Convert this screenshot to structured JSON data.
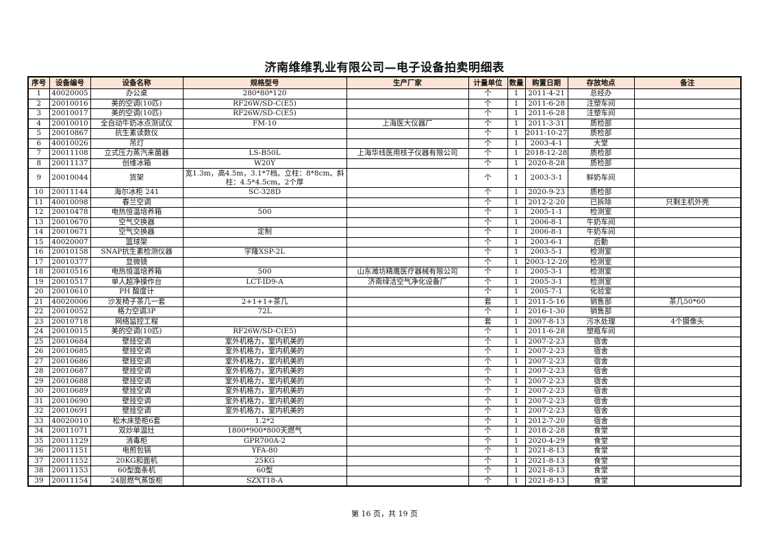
{
  "title": "济南维维乳业有限公司—电子设备拍卖明细表",
  "columns": [
    "序号",
    "设备编号",
    "设备名称",
    "规格型号",
    "生产厂家",
    "计量单位",
    "数量",
    "购置日期",
    "存放地点",
    "备注"
  ],
  "rows": [
    [
      "1",
      "40020005",
      "办公桌",
      "280*80*120",
      "",
      "个",
      "1",
      "2011-4-21",
      "总经办",
      ""
    ],
    [
      "2",
      "20010016",
      "美的空调(10匹)",
      "RF26W/SD-C(E5)",
      "",
      "个",
      "1",
      "2011-6-28",
      "注塑车间",
      ""
    ],
    [
      "3",
      "20010017",
      "美的空调(10匹)",
      "RF26W/SD-C(E5)",
      "",
      "个",
      "1",
      "2011-6-28",
      "注塑车间",
      ""
    ],
    [
      "4",
      "20010010",
      "全自动牛奶冰点测试仪",
      "FM-10",
      "上海医大仪器厂",
      "个",
      "1",
      "2011-3-31",
      "质检部",
      ""
    ],
    [
      "5",
      "20010867",
      "抗生素读数仪",
      "",
      "",
      "个",
      "1",
      "2011-10-27",
      "质检部",
      ""
    ],
    [
      "6",
      "40010026",
      "吊灯",
      "",
      "",
      "个",
      "1",
      "2003-4-1",
      "大堂",
      ""
    ],
    [
      "7",
      "20011108",
      "立式压力蒸汽来菌器",
      "LS-B50L",
      "上海华线医用核子仪器有限公司",
      "个",
      "1",
      "2018-12-28",
      "质检部",
      ""
    ],
    [
      "8",
      "20011137",
      "创维冰箱",
      "W20Y",
      "",
      "个",
      "1",
      "2020-8-28",
      "质检部",
      ""
    ],
    [
      "9",
      "20010044",
      "货架",
      "宽1.3m，高4.5m，3.1*7档。立柱：8*8cm。斜柱：4.5*4.5cm。2个厚",
      "",
      "个",
      "1",
      "2003-3-1",
      "鲜奶车间",
      ""
    ],
    [
      "10",
      "20011144",
      "海尔冰柜 241",
      "SC-328D",
      "",
      "个",
      "1",
      "2020-9-23",
      "质检部",
      ""
    ],
    [
      "11",
      "40010098",
      "春兰空调",
      "",
      "",
      "个",
      "1",
      "2012-2-20",
      "已拆除",
      "只剩主机外壳"
    ],
    [
      "12",
      "20010478",
      "电热恒温培养箱",
      "500",
      "",
      "个",
      "1",
      "2005-1-1",
      "检测室",
      ""
    ],
    [
      "13",
      "20010670",
      "空气交换器",
      "",
      "",
      "个",
      "1",
      "2006-8-1",
      "牛奶车间",
      ""
    ],
    [
      "14",
      "20010671",
      "空气交换器",
      "定制",
      "",
      "个",
      "1",
      "2006-8-1",
      "牛奶车间",
      ""
    ],
    [
      "15",
      "40020007",
      "篮球架",
      "",
      "",
      "个",
      "1",
      "2003-6-1",
      "后勤",
      ""
    ],
    [
      "16",
      "20010158",
      "SNAP抗生素检测仪器",
      "宇隆XSP-2L",
      "",
      "个",
      "1",
      "2003-5-1",
      "检测室",
      ""
    ],
    [
      "17",
      "20010377",
      "显微镜",
      "",
      "",
      "个",
      "1",
      "2003-12-20",
      "检测室",
      ""
    ],
    [
      "18",
      "20010516",
      "电热恒温培养箱",
      "500",
      "山东潍坊精鹰医疗器械有限公司",
      "个",
      "1",
      "2005-3-1",
      "检测室",
      ""
    ],
    [
      "19",
      "20010517",
      "单人超净操作台",
      "LCT-ID9-A",
      "济南绿洁空气净化设备厂",
      "个",
      "1",
      "2005-3-1",
      "检测室",
      ""
    ],
    [
      "20",
      "20010610",
      "PH 酸度计",
      "",
      "",
      "个",
      "1",
      "2005-7-1",
      "化验室",
      ""
    ],
    [
      "21",
      "40020006",
      "沙发椅子茶几一套",
      "2+1+1+茶几",
      "",
      "套",
      "1",
      "2011-5-16",
      "销售部",
      "茶几50*60"
    ],
    [
      "22",
      "20010052",
      "格力空调3P",
      "72L",
      "",
      "个",
      "1",
      "2016-1-30",
      "销售部",
      ""
    ],
    [
      "23",
      "20010718",
      "网络监控工程",
      "",
      "",
      "套",
      "1",
      "2007-8-13",
      "污水处理",
      "4个摄像头"
    ],
    [
      "24",
      "20010015",
      "美的空调(10匹)",
      "RF26W/SD-C(E5)",
      "",
      "个",
      "1",
      "2011-6-28",
      "塑瓶车间",
      ""
    ],
    [
      "25",
      "20010684",
      "壁挂空调",
      "室外机格力，室内机美的",
      "",
      "个",
      "1",
      "2007-2-23",
      "宿舍",
      ""
    ],
    [
      "26",
      "20010685",
      "壁挂空调",
      "室外机格力，室内机美的",
      "",
      "个",
      "1",
      "2007-2-23",
      "宿舍",
      ""
    ],
    [
      "27",
      "20010686",
      "壁挂空调",
      "室外机格力，室内机美的",
      "",
      "个",
      "1",
      "2007-2-23",
      "宿舍",
      ""
    ],
    [
      "28",
      "20010687",
      "壁挂空调",
      "室外机格力，室内机美的",
      "",
      "个",
      "1",
      "2007-2-23",
      "宿舍",
      ""
    ],
    [
      "29",
      "20010688",
      "壁挂空调",
      "室外机格力，室内机美的",
      "",
      "个",
      "1",
      "2007-2-23",
      "宿舍",
      ""
    ],
    [
      "30",
      "20010689",
      "壁挂空调",
      "室外机格力，室内机美的",
      "",
      "个",
      "1",
      "2007-2-23",
      "宿舍",
      ""
    ],
    [
      "31",
      "20010690",
      "壁挂空调",
      "室外机格力，室内机美的",
      "",
      "个",
      "1",
      "2007-2-23",
      "宿舍",
      ""
    ],
    [
      "32",
      "20010691",
      "壁挂空调",
      "室外机格力，室内机美的",
      "",
      "个",
      "1",
      "2007-2-23",
      "宿舍",
      ""
    ],
    [
      "33",
      "40020010",
      "松木床垫柜6套",
      "1.2*2",
      "",
      "个",
      "1",
      "2012-7-20",
      "宿舍",
      ""
    ],
    [
      "34",
      "20011071",
      "双炒单温灶",
      "1800*900*800天燃气",
      "",
      "个",
      "1",
      "2018-2-28",
      "食堂",
      ""
    ],
    [
      "35",
      "20011129",
      "消毒柜",
      "GPR700A-2",
      "",
      "个",
      "1",
      "2020-4-29",
      "食堂",
      ""
    ],
    [
      "36",
      "20011151",
      "电煎包锅",
      "YFA-80",
      "",
      "个",
      "1",
      "2021-8-13",
      "食堂",
      ""
    ],
    [
      "37",
      "20011152",
      "20KG和面机",
      "25KG",
      "",
      "个",
      "1",
      "2021-8-13",
      "食堂",
      ""
    ],
    [
      "38",
      "20011153",
      "60型面条机",
      "60型",
      "",
      "个",
      "1",
      "2021-8-13",
      "食堂",
      ""
    ],
    [
      "39",
      "20011154",
      "24层燃气蒸饭柜",
      "SZXT18-A",
      "",
      "个",
      "1",
      "2021-8-13",
      "食堂",
      ""
    ]
  ],
  "footer": "第 16 页，共 19 页",
  "colors": {
    "header_bg": "#fce4d6"
  }
}
